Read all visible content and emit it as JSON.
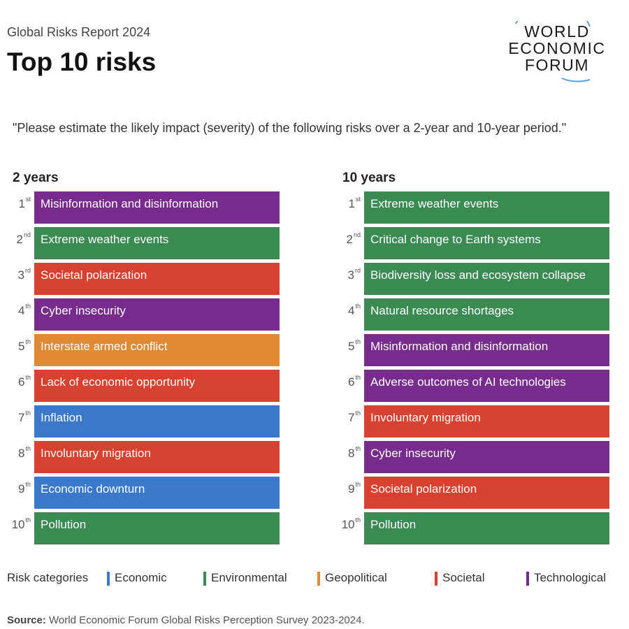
{
  "header": {
    "subtitle": "Global Risks Report 2024",
    "title": "Top 10 risks"
  },
  "logo": {
    "lines": [
      "WORLD",
      "ECONOMIC",
      "FORUM"
    ]
  },
  "question": "\"Please estimate the likely impact (severity) of the following risks over a 2-year and 10-year period.\"",
  "colors": {
    "Economic": "#3a78c9",
    "Environmental": "#3b8a52",
    "Geopolitical": "#e08a36",
    "Societal": "#d8412f",
    "Technological": "#772b8c"
  },
  "chart_data": {
    "type": "table",
    "columns": [
      {
        "heading": "2 years",
        "items": [
          {
            "rank": "1",
            "suffix": "st",
            "label": "Misinformation and disinformation",
            "category": "Technological"
          },
          {
            "rank": "2",
            "suffix": "nd",
            "label": "Extreme weather events",
            "category": "Environmental"
          },
          {
            "rank": "3",
            "suffix": "rd",
            "label": "Societal polarization",
            "category": "Societal"
          },
          {
            "rank": "4",
            "suffix": "th",
            "label": "Cyber insecurity",
            "category": "Technological"
          },
          {
            "rank": "5",
            "suffix": "th",
            "label": "Interstate armed conflict",
            "category": "Geopolitical"
          },
          {
            "rank": "6",
            "suffix": "th",
            "label": "Lack of economic opportunity",
            "category": "Societal"
          },
          {
            "rank": "7",
            "suffix": "th",
            "label": "Inflation",
            "category": "Economic"
          },
          {
            "rank": "8",
            "suffix": "th",
            "label": "Involuntary migration",
            "category": "Societal"
          },
          {
            "rank": "9",
            "suffix": "th",
            "label": "Economic downturn",
            "category": "Economic"
          },
          {
            "rank": "10",
            "suffix": "th",
            "label": "Pollution",
            "category": "Environmental"
          }
        ]
      },
      {
        "heading": "10 years",
        "items": [
          {
            "rank": "1",
            "suffix": "st",
            "label": "Extreme weather events",
            "category": "Environmental"
          },
          {
            "rank": "2",
            "suffix": "nd",
            "label": "Critical change to Earth systems",
            "category": "Environmental"
          },
          {
            "rank": "3",
            "suffix": "rd",
            "label": "Biodiversity loss and ecosystem collapse",
            "category": "Environmental"
          },
          {
            "rank": "4",
            "suffix": "th",
            "label": "Natural resource shortages",
            "category": "Environmental"
          },
          {
            "rank": "5",
            "suffix": "th",
            "label": "Misinformation and disinformation",
            "category": "Technological"
          },
          {
            "rank": "6",
            "suffix": "th",
            "label": "Adverse outcomes of AI technologies",
            "category": "Technological"
          },
          {
            "rank": "7",
            "suffix": "th",
            "label": "Involuntary migration",
            "category": "Societal"
          },
          {
            "rank": "8",
            "suffix": "th",
            "label": "Cyber insecurity",
            "category": "Technological"
          },
          {
            "rank": "9",
            "suffix": "th",
            "label": "Societal polarization",
            "category": "Societal"
          },
          {
            "rank": "10",
            "suffix": "th",
            "label": "Pollution",
            "category": "Environmental"
          }
        ]
      }
    ]
  },
  "legend": {
    "title": "Risk categories",
    "items": [
      {
        "label": "Economic",
        "category": "Economic"
      },
      {
        "label": "Environmental",
        "category": "Environmental"
      },
      {
        "label": "Geopolitical",
        "category": "Geopolitical"
      },
      {
        "label": "Societal",
        "category": "Societal"
      },
      {
        "label": "Technological",
        "category": "Technological"
      }
    ]
  },
  "source": {
    "label": "Source:",
    "text": "World Economic Forum Global Risks Perception Survey 2023-2024."
  }
}
